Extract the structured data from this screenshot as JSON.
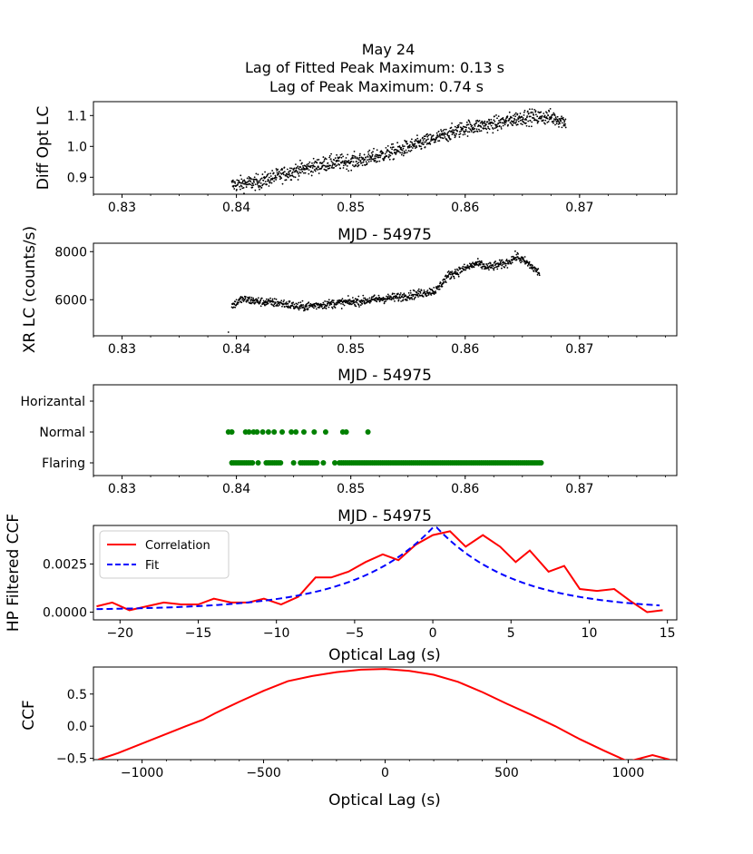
{
  "figure": {
    "title_lines": [
      "May 24",
      "Lag of Fitted Peak Maximum: 0.13 s",
      "Lag of Peak Maximum: 0.74 s"
    ]
  },
  "colors": {
    "black": "#000000",
    "green": "#008000",
    "red": "#ff0000",
    "blue": "#0000ff"
  },
  "chart_data": [
    {
      "id": "opt",
      "type": "scatter",
      "ylabel": "Diff Opt LC",
      "xlabel": "MJD - 54975",
      "xlim": [
        0.8275,
        0.8785
      ],
      "ylim": [
        0.845,
        1.145
      ],
      "xticks": [
        0.83,
        0.84,
        0.85,
        0.86,
        0.87
      ],
      "xtick_labels": [
        "0.83",
        "0.84",
        "0.85",
        "0.86",
        "0.87"
      ],
      "yticks": [
        0.9,
        1.0,
        1.1
      ],
      "ytick_labels": [
        "0.9",
        "1.0",
        "1.1"
      ],
      "trend": [
        [
          0.8396,
          0.875
        ],
        [
          0.842,
          0.885
        ],
        [
          0.845,
          0.92
        ],
        [
          0.848,
          0.945
        ],
        [
          0.851,
          0.955
        ],
        [
          0.854,
          0.985
        ],
        [
          0.857,
          1.02
        ],
        [
          0.86,
          1.06
        ],
        [
          0.863,
          1.075
        ],
        [
          0.865,
          1.095
        ],
        [
          0.8675,
          1.095
        ],
        [
          0.8688,
          1.08
        ]
      ],
      "noise": 0.012,
      "n_points": 1100
    },
    {
      "id": "xr",
      "type": "scatter",
      "ylabel": "XR LC (counts/s)",
      "xlabel": "MJD - 54975",
      "xlim": [
        0.8275,
        0.8785
      ],
      "ylim": [
        4500,
        8350
      ],
      "xticks": [
        0.83,
        0.84,
        0.85,
        0.86,
        0.87
      ],
      "xtick_labels": [
        "0.83",
        "0.84",
        "0.85",
        "0.86",
        "0.87"
      ],
      "yticks": [
        6000,
        8000
      ],
      "ytick_labels": [
        "6000",
        "8000"
      ],
      "trend": [
        [
          0.8396,
          5750
        ],
        [
          0.8405,
          6020
        ],
        [
          0.842,
          5920
        ],
        [
          0.844,
          5850
        ],
        [
          0.8455,
          5700
        ],
        [
          0.848,
          5820
        ],
        [
          0.851,
          5950
        ],
        [
          0.854,
          6100
        ],
        [
          0.856,
          6250
        ],
        [
          0.8575,
          6400
        ],
        [
          0.8585,
          7000
        ],
        [
          0.8595,
          7200
        ],
        [
          0.861,
          7500
        ],
        [
          0.862,
          7350
        ],
        [
          0.8635,
          7500
        ],
        [
          0.8645,
          7800
        ],
        [
          0.8655,
          7500
        ],
        [
          0.8665,
          7100
        ]
      ],
      "noise": 90,
      "n_points": 950,
      "outliers": [
        [
          0.8393,
          4650
        ]
      ]
    },
    {
      "id": "state",
      "type": "scatter",
      "xlabel": "MJD - 54975",
      "xlim": [
        0.8275,
        0.8785
      ],
      "categories": [
        "Flaring",
        "Normal",
        "Horizantal"
      ],
      "xticks": [
        0.83,
        0.84,
        0.85,
        0.86,
        0.87
      ],
      "xtick_labels": [
        "0.83",
        "0.84",
        "0.85",
        "0.86",
        "0.87"
      ],
      "normal_x": [
        0.8393,
        0.8396,
        0.8408,
        0.8411,
        0.8415,
        0.8418,
        0.8423,
        0.8428,
        0.8433,
        0.844,
        0.8448,
        0.8452,
        0.8459,
        0.8468,
        0.8478,
        0.8493,
        0.8496,
        0.8515
      ],
      "flaring_ranges": [
        [
          0.8396,
          0.8415
        ],
        [
          0.8426,
          0.844
        ],
        [
          0.8456,
          0.8472
        ],
        [
          0.849,
          0.8668
        ]
      ],
      "flaring_x": [
        0.8419,
        0.845,
        0.8476,
        0.8486
      ]
    },
    {
      "id": "hp",
      "type": "line",
      "ylabel": "HP Filtered CCF",
      "xlabel": "Optical Lag (s)",
      "xlim": [
        -21.7,
        15.6
      ],
      "ylim": [
        -0.0004,
        0.0045
      ],
      "xticks": [
        -20,
        -15,
        -10,
        -5,
        0,
        5,
        10,
        15
      ],
      "xtick_labels": [
        "−20",
        "−15",
        "−10",
        "−5",
        "0",
        "5",
        "10",
        "15"
      ],
      "yticks": [
        0.0,
        0.0025
      ],
      "ytick_labels": [
        "0.0000",
        "0.0025"
      ],
      "legend": [
        "Correlation",
        "Fit"
      ],
      "series": [
        {
          "name": "Correlation",
          "color": "#ff0000",
          "x": [
            -21.5,
            -20.5,
            -19.4,
            -18.3,
            -17.2,
            -16.1,
            -15.0,
            -14.0,
            -12.9,
            -11.8,
            -10.8,
            -9.7,
            -8.6,
            -7.5,
            -6.5,
            -5.4,
            -4.3,
            -3.2,
            -2.2,
            -1.1,
            0.0,
            1.1,
            2.1,
            3.2,
            4.3,
            5.3,
            6.2,
            7.4,
            8.4,
            9.4,
            10.5,
            11.6,
            12.6,
            13.7,
            14.7
          ],
          "values": [
            0.0003,
            0.0005,
            0.0001,
            0.0003,
            0.0005,
            0.0004,
            0.0004,
            0.0007,
            0.0005,
            0.0005,
            0.0007,
            0.0004,
            0.0008,
            0.0018,
            0.0018,
            0.0021,
            0.0026,
            0.003,
            0.0027,
            0.0035,
            0.004,
            0.0042,
            0.0034,
            0.004,
            0.0034,
            0.0026,
            0.0032,
            0.0021,
            0.0024,
            0.0012,
            0.0011,
            0.0012,
            0.0006,
            0.0,
            0.0001
          ]
        },
        {
          "name": "Fit",
          "color": "#0000ff",
          "style": "dashed",
          "model": {
            "amplitude": 0.0044,
            "center": 0.13,
            "width": 5.0,
            "offset": 0.0001
          },
          "x_range": [
            -21.5,
            14.5
          ]
        }
      ]
    },
    {
      "id": "ccf",
      "type": "line",
      "ylabel": "CCF",
      "xlabel": "Optical Lag (s)",
      "xlim": [
        -1200,
        1200
      ],
      "ylim": [
        -0.52,
        0.92
      ],
      "xticks": [
        -1000,
        -500,
        0,
        500,
        1000
      ],
      "xtick_labels": [
        "−1000",
        "−500",
        "0",
        "500",
        "1000"
      ],
      "yticks": [
        -0.5,
        0.0,
        0.5
      ],
      "ytick_labels": [
        "−0.5",
        "0.0",
        "0.5"
      ],
      "series": [
        {
          "name": "CCF",
          "color": "#ff0000",
          "x": [
            -1180,
            -1100,
            -1000,
            -900,
            -820,
            -750,
            -700,
            -600,
            -500,
            -400,
            -300,
            -200,
            -100,
            0,
            100,
            200,
            300,
            400,
            500,
            600,
            700,
            800,
            900,
            1000,
            1100,
            1170
          ],
          "values": [
            -0.52,
            -0.42,
            -0.27,
            -0.12,
            0.0,
            0.1,
            0.2,
            0.38,
            0.55,
            0.7,
            0.78,
            0.84,
            0.88,
            0.89,
            0.86,
            0.8,
            0.69,
            0.53,
            0.35,
            0.18,
            0.0,
            -0.2,
            -0.38,
            -0.55,
            -0.45,
            -0.52
          ]
        }
      ]
    }
  ]
}
